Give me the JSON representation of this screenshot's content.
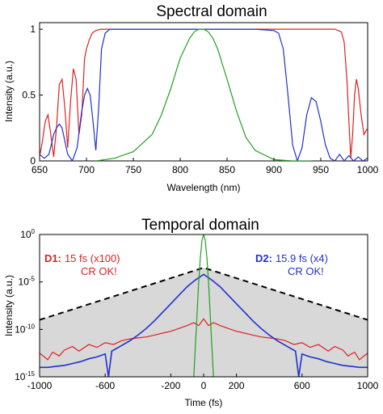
{
  "chart_data": [
    {
      "type": "line",
      "title": "Spectral domain",
      "xlabel": "Wavelength (nm)",
      "ylabel": "Intensity (a.u.)",
      "xlim": [
        650,
        1000
      ],
      "ylim": [
        0,
        1.05
      ],
      "x_ticks": [
        "650",
        "700",
        "750",
        "800",
        "850",
        "900",
        "950",
        "1000"
      ],
      "y_ticks": [
        "0",
        "0.5",
        "1"
      ],
      "grid": false,
      "series": [
        {
          "color": "#e02020",
          "x": [
            650,
            653,
            656,
            659,
            662,
            665,
            668,
            671,
            674,
            677,
            680,
            683,
            686,
            689,
            692,
            695,
            698,
            700,
            703,
            706,
            710,
            715,
            720,
            725,
            760,
            800,
            850,
            900,
            950,
            965,
            972,
            975,
            978,
            980,
            982,
            984,
            986,
            988,
            990,
            993,
            996,
            1000
          ],
          "y": [
            0.03,
            0.15,
            0.3,
            0.35,
            0.2,
            0.03,
            0.25,
            0.58,
            0.62,
            0.4,
            0.1,
            0.45,
            0.7,
            0.62,
            0.2,
            0.35,
            0.78,
            0.85,
            0.92,
            0.97,
            0.99,
            1.0,
            1.0,
            1.0,
            1.0,
            1.0,
            1.0,
            1.0,
            1.0,
            1.0,
            0.98,
            0.9,
            0.6,
            0.3,
            0.02,
            0.2,
            0.5,
            0.62,
            0.55,
            0.35,
            0.2,
            0.25
          ]
        },
        {
          "color": "#2030d0",
          "x": [
            650,
            655,
            660,
            665,
            668,
            671,
            674,
            677,
            680,
            685,
            690,
            695,
            698,
            701,
            704,
            707,
            710,
            713,
            716,
            720,
            725,
            730,
            740,
            760,
            800,
            850,
            880,
            900,
            905,
            910,
            915,
            920,
            925,
            930,
            935,
            940,
            945,
            950,
            955,
            960,
            965,
            970,
            975,
            980,
            985,
            990,
            995,
            1000
          ],
          "y": [
            0.05,
            0.02,
            0.05,
            0.2,
            0.25,
            0.28,
            0.25,
            0.15,
            0.05,
            0.0,
            0.1,
            0.38,
            0.5,
            0.55,
            0.5,
            0.3,
            0.08,
            0.4,
            0.85,
            0.97,
            1.0,
            1.0,
            1.0,
            1.0,
            1.0,
            1.0,
            1.0,
            0.99,
            0.97,
            0.85,
            0.5,
            0.12,
            0.0,
            0.1,
            0.35,
            0.48,
            0.45,
            0.3,
            0.12,
            0.02,
            0.0,
            0.05,
            0.0,
            0.04,
            0.0,
            0.03,
            0.0,
            0.02
          ]
        },
        {
          "color": "#20a020",
          "x": [
            710,
            730,
            750,
            770,
            780,
            790,
            800,
            810,
            815,
            820,
            825,
            830,
            835,
            840,
            850,
            860,
            870,
            880,
            900,
            920,
            940
          ],
          "y": [
            0.0,
            0.02,
            0.07,
            0.2,
            0.35,
            0.55,
            0.78,
            0.93,
            0.98,
            1.0,
            1.0,
            0.98,
            0.93,
            0.85,
            0.62,
            0.38,
            0.18,
            0.08,
            0.01,
            0.0,
            0.0
          ]
        }
      ]
    },
    {
      "type": "line",
      "title": "Temporal domain",
      "xlabel": "Time (fs)",
      "ylabel": "Intensity (a.u.)",
      "xlim": [
        -1000,
        1000
      ],
      "ylog": true,
      "ylim_log10": [
        -15,
        0
      ],
      "x_ticks": [
        "-1000",
        "-600",
        "-200",
        "0",
        "200",
        "600",
        "1000"
      ],
      "y_tick_base": "10",
      "y_tick_exponents": [
        "0",
        "-5",
        "-10",
        "-15"
      ],
      "grid": false,
      "annotations": [
        {
          "label": "D1:",
          "text": "15 fs (x100)",
          "line2": "CR OK!",
          "color": "#e02020"
        },
        {
          "label": "D2:",
          "text": "15.9 fs (x4)",
          "line2": "CR OK!",
          "color": "#2030d0"
        }
      ],
      "envelope": {
        "style": "dashed",
        "color": "#000000",
        "fill": "#d8d8d8",
        "x": [
          -1000,
          0,
          1000
        ],
        "log10_y": [
          -9,
          -3.5,
          -9
        ]
      },
      "series": [
        {
          "color": "#e02020",
          "x": [
            -1000,
            -950,
            -920,
            -880,
            -850,
            -800,
            -760,
            -700,
            -650,
            -600,
            -550,
            -500,
            -450,
            -400,
            -350,
            -300,
            -250,
            -200,
            -150,
            -100,
            -60,
            -30,
            0,
            30,
            60,
            100,
            150,
            200,
            250,
            300,
            350,
            400,
            450,
            500,
            550,
            600,
            650,
            700,
            760,
            800,
            850,
            880,
            920,
            950,
            1000
          ],
          "log10_y": [
            -12.5,
            -13.2,
            -12.4,
            -12.8,
            -12.2,
            -11.8,
            -12.3,
            -11.6,
            -11.9,
            -11.4,
            -11.6,
            -11.2,
            -11.0,
            -10.9,
            -10.8,
            -10.6,
            -10.4,
            -10.2,
            -9.9,
            -9.6,
            -9.3,
            -9.6,
            -8.9,
            -9.6,
            -9.3,
            -9.6,
            -9.9,
            -10.2,
            -10.4,
            -10.6,
            -10.8,
            -10.9,
            -11.0,
            -11.2,
            -11.6,
            -11.4,
            -11.9,
            -11.6,
            -12.3,
            -11.8,
            -12.2,
            -12.8,
            -12.4,
            -13.2,
            -12.5
          ]
        },
        {
          "color": "#2030d0",
          "x": [
            -1000,
            -950,
            -900,
            -850,
            -800,
            -750,
            -700,
            -650,
            -600,
            -580,
            -560,
            -500,
            -450,
            -400,
            -350,
            -300,
            -250,
            -200,
            -150,
            -100,
            -50,
            0,
            50,
            100,
            150,
            200,
            250,
            300,
            350,
            400,
            450,
            500,
            560,
            580,
            600,
            650,
            700,
            750,
            800,
            850,
            900,
            950,
            1000
          ],
          "log10_y": [
            -14,
            -14,
            -13.9,
            -13.8,
            -13.6,
            -13.4,
            -13.1,
            -12.9,
            -12.6,
            -15,
            -12.3,
            -11.7,
            -11.2,
            -10.6,
            -9.9,
            -9.1,
            -8.2,
            -7.3,
            -6.4,
            -5.5,
            -4.8,
            -4.2,
            -4.8,
            -5.5,
            -6.4,
            -7.3,
            -8.2,
            -9.1,
            -9.9,
            -10.6,
            -11.2,
            -11.7,
            -12.3,
            -15,
            -12.6,
            -12.9,
            -13.1,
            -13.4,
            -13.6,
            -13.8,
            -13.9,
            -14,
            -14
          ]
        },
        {
          "color": "#20a020",
          "x": [
            -60,
            -45,
            -30,
            -20,
            -10,
            0,
            10,
            20,
            30,
            45,
            60
          ],
          "log10_y": [
            -15,
            -10,
            -5,
            -2.5,
            -0.6,
            0,
            -0.6,
            -2.5,
            -5,
            -10,
            -15
          ]
        }
      ]
    }
  ]
}
